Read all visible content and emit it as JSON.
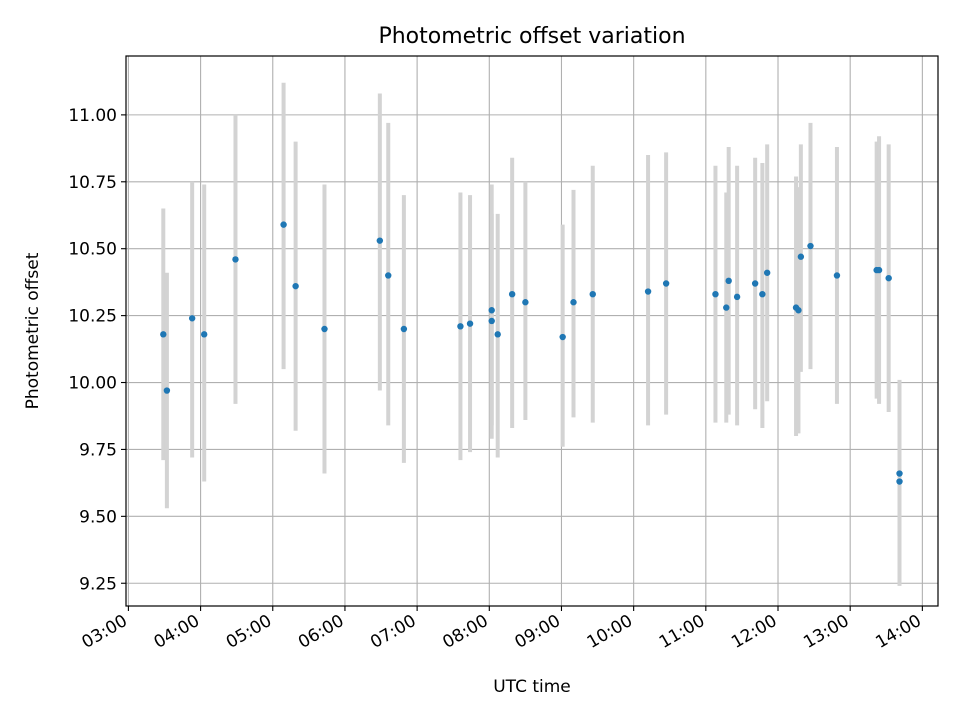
{
  "chart_data": {
    "type": "scatter",
    "title": "Photometric offset variation",
    "xlabel": "UTC time",
    "ylabel": "Photometric offset",
    "xlim": [
      "02:58",
      "14:13"
    ],
    "ylim": [
      9.165,
      11.22
    ],
    "xticks": [
      "03:00",
      "04:00",
      "05:00",
      "06:00",
      "07:00",
      "08:00",
      "09:00",
      "10:00",
      "11:00",
      "12:00",
      "13:00",
      "14:00"
    ],
    "yticks": [
      "9.25",
      "9.50",
      "9.75",
      "10.00",
      "10.25",
      "10.50",
      "10.75",
      "11.00"
    ],
    "grid": true,
    "colors": {
      "marker": "#1f77b4",
      "errorbar": "#d3d3d3",
      "grid": "#b0b0b0"
    },
    "series": [
      {
        "points": [
          {
            "x": "03:29",
            "y": 10.18,
            "lo": 9.71,
            "hi": 10.65
          },
          {
            "x": "03:32",
            "y": 9.97,
            "lo": 9.53,
            "hi": 10.41
          },
          {
            "x": "03:53",
            "y": 10.24,
            "lo": 9.72,
            "hi": 10.75
          },
          {
            "x": "04:03",
            "y": 10.18,
            "lo": 9.63,
            "hi": 10.74
          },
          {
            "x": "04:29",
            "y": 10.46,
            "lo": 9.92,
            "hi": 11.0
          },
          {
            "x": "05:09",
            "y": 10.59,
            "lo": 10.05,
            "hi": 11.12
          },
          {
            "x": "05:19",
            "y": 10.36,
            "lo": 9.82,
            "hi": 10.9
          },
          {
            "x": "05:43",
            "y": 10.2,
            "lo": 9.66,
            "hi": 10.74
          },
          {
            "x": "06:29",
            "y": 10.53,
            "lo": 9.97,
            "hi": 11.08
          },
          {
            "x": "06:36",
            "y": 10.4,
            "lo": 9.84,
            "hi": 10.97
          },
          {
            "x": "06:49",
            "y": 10.2,
            "lo": 9.7,
            "hi": 10.7
          },
          {
            "x": "07:36",
            "y": 10.21,
            "lo": 9.71,
            "hi": 10.71
          },
          {
            "x": "07:44",
            "y": 10.22,
            "lo": 9.74,
            "hi": 10.7
          },
          {
            "x": "08:02",
            "y": 10.27,
            "lo": 9.79,
            "hi": 10.74
          },
          {
            "x": "08:02",
            "y": 10.23,
            "lo": 9.84,
            "hi": 10.63
          },
          {
            "x": "08:07",
            "y": 10.18,
            "lo": 9.72,
            "hi": 10.63
          },
          {
            "x": "08:19",
            "y": 10.33,
            "lo": 9.83,
            "hi": 10.84
          },
          {
            "x": "08:30",
            "y": 10.3,
            "lo": 9.86,
            "hi": 10.75
          },
          {
            "x": "09:01",
            "y": 10.17,
            "lo": 9.76,
            "hi": 10.59
          },
          {
            "x": "09:10",
            "y": 10.3,
            "lo": 9.87,
            "hi": 10.72
          },
          {
            "x": "09:26",
            "y": 10.33,
            "lo": 9.85,
            "hi": 10.81
          },
          {
            "x": "10:12",
            "y": 10.34,
            "lo": 9.84,
            "hi": 10.85
          },
          {
            "x": "10:27",
            "y": 10.37,
            "lo": 9.88,
            "hi": 10.86
          },
          {
            "x": "11:08",
            "y": 10.33,
            "lo": 9.85,
            "hi": 10.81
          },
          {
            "x": "11:17",
            "y": 10.28,
            "lo": 9.85,
            "hi": 10.71
          },
          {
            "x": "11:19",
            "y": 10.38,
            "lo": 9.88,
            "hi": 10.88
          },
          {
            "x": "11:26",
            "y": 10.32,
            "lo": 9.84,
            "hi": 10.81
          },
          {
            "x": "11:41",
            "y": 10.37,
            "lo": 9.9,
            "hi": 10.84
          },
          {
            "x": "11:47",
            "y": 10.33,
            "lo": 9.83,
            "hi": 10.82
          },
          {
            "x": "11:51",
            "y": 10.41,
            "lo": 9.93,
            "hi": 10.89
          },
          {
            "x": "12:15",
            "y": 10.28,
            "lo": 9.8,
            "hi": 10.77
          },
          {
            "x": "12:17",
            "y": 10.27,
            "lo": 9.81,
            "hi": 10.73
          },
          {
            "x": "12:19",
            "y": 10.47,
            "lo": 10.04,
            "hi": 10.89
          },
          {
            "x": "12:27",
            "y": 10.51,
            "lo": 10.05,
            "hi": 10.97
          },
          {
            "x": "12:49",
            "y": 10.4,
            "lo": 9.92,
            "hi": 10.88
          },
          {
            "x": "13:22",
            "y": 10.42,
            "lo": 9.94,
            "hi": 10.9
          },
          {
            "x": "13:24",
            "y": 10.42,
            "lo": 9.92,
            "hi": 10.92
          },
          {
            "x": "13:32",
            "y": 10.39,
            "lo": 9.89,
            "hi": 10.89
          },
          {
            "x": "13:41",
            "y": 9.66,
            "lo": 9.3,
            "hi": 10.01
          },
          {
            "x": "13:41",
            "y": 9.63,
            "lo": 9.24,
            "hi": 10.0
          }
        ]
      }
    ]
  }
}
